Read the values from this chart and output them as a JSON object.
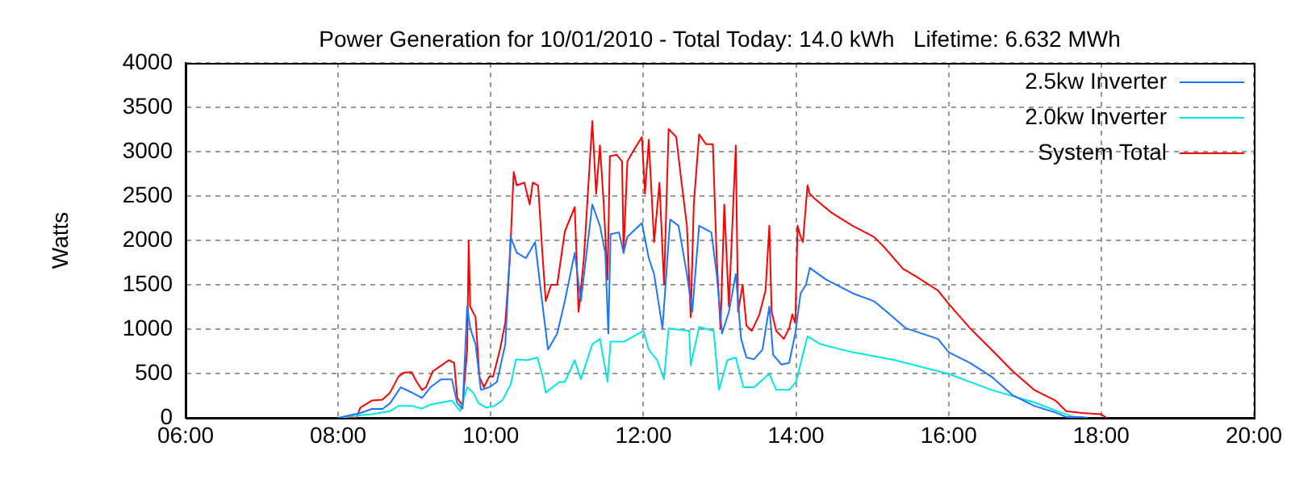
{
  "chart_data": {
    "type": "line",
    "title": "Power Generation for 10/01/2010 - Total Today: 14.0 kWh   Lifetime: 6.632 MWh",
    "ylabel": "Watts",
    "xlim": [
      6,
      20
    ],
    "xticks": [
      {
        "value": 6,
        "label": "06:00"
      },
      {
        "value": 8,
        "label": "08:00"
      },
      {
        "value": 10,
        "label": "10:00"
      },
      {
        "value": 12,
        "label": "12:00"
      },
      {
        "value": 14,
        "label": "14:00"
      },
      {
        "value": 16,
        "label": "16:00"
      },
      {
        "value": 18,
        "label": "18:00"
      },
      {
        "value": 20,
        "label": "20:00"
      }
    ],
    "ylim": [
      0,
      4000
    ],
    "yticks": [
      0,
      500,
      1000,
      1500,
      2000,
      2500,
      3000,
      3500,
      4000
    ],
    "grid": true,
    "legend": "top right",
    "marker": "none",
    "line_style": "solid",
    "series": [
      {
        "name": "2.5kw Inverter",
        "color": "#1a75ff",
        "x": [
          8.0,
          8.29,
          8.44,
          8.58,
          8.68,
          8.82,
          8.93,
          9.03,
          9.1,
          9.21,
          9.35,
          9.49,
          9.56,
          9.63,
          9.69,
          9.73,
          9.8,
          9.87,
          9.98,
          10.08,
          10.19,
          10.26,
          10.34,
          10.46,
          10.58,
          10.68,
          10.75,
          10.87,
          10.97,
          11.1,
          11.18,
          11.33,
          11.43,
          11.5,
          11.54,
          11.57,
          11.68,
          11.74,
          11.79,
          11.98,
          12.07,
          12.14,
          12.25,
          12.35,
          12.46,
          12.57,
          12.64,
          12.73,
          12.89,
          12.96,
          13.03,
          13.12,
          13.21,
          13.28,
          13.35,
          13.45,
          13.56,
          13.65,
          13.7,
          13.81,
          13.91,
          13.99,
          14.06,
          14.13,
          14.18,
          14.39,
          14.74,
          15.02,
          15.19,
          15.44,
          15.86,
          16.0,
          16.28,
          16.56,
          16.84,
          17.12,
          17.4,
          17.54,
          17.75,
          17.82
        ],
        "values": [
          0,
          55,
          100,
          100,
          165,
          345,
          300,
          255,
          225,
          345,
          435,
          435,
          165,
          105,
          1255,
          1010,
          830,
          315,
          345,
          405,
          830,
          2040,
          1860,
          1800,
          1980,
          1255,
          770,
          950,
          1315,
          1860,
          1315,
          2405,
          2165,
          1860,
          950,
          2070,
          2090,
          1860,
          2040,
          2195,
          1800,
          1620,
          1010,
          2235,
          2165,
          1620,
          1195,
          2165,
          2090,
          1620,
          950,
          1195,
          1620,
          890,
          680,
          660,
          770,
          1255,
          710,
          600,
          620,
          950,
          1405,
          1500,
          1690,
          1560,
          1405,
          1315,
          1195,
          1010,
          890,
          740,
          620,
          465,
          255,
          135,
          60,
          10,
          10,
          0
        ]
      },
      {
        "name": "2.0kw Inverter",
        "color": "#00e6e6",
        "x": [
          8.0,
          8.29,
          8.44,
          8.68,
          8.79,
          8.96,
          9.1,
          9.21,
          9.49,
          9.6,
          9.69,
          9.77,
          9.84,
          9.94,
          10.05,
          10.15,
          10.26,
          10.33,
          10.47,
          10.61,
          10.68,
          10.72,
          10.9,
          10.97,
          11.1,
          11.18,
          11.33,
          11.43,
          11.53,
          11.57,
          11.75,
          12.0,
          12.07,
          12.18,
          12.27,
          12.33,
          12.6,
          12.62,
          12.73,
          12.92,
          12.99,
          13.1,
          13.21,
          13.31,
          13.45,
          13.65,
          13.74,
          13.91,
          14.0,
          14.15,
          14.32,
          14.74,
          15.3,
          16.0,
          16.56,
          17.12,
          17.47,
          17.65,
          17.75
        ],
        "values": [
          0,
          30,
          40,
          75,
          135,
          135,
          105,
          150,
          195,
          75,
          345,
          285,
          165,
          115,
          135,
          195,
          375,
          660,
          650,
          680,
          465,
          285,
          405,
          405,
          650,
          435,
          830,
          890,
          405,
          860,
          860,
          980,
          770,
          650,
          435,
          1010,
          980,
          590,
          1025,
          980,
          315,
          650,
          680,
          345,
          345,
          495,
          315,
          315,
          405,
          920,
          830,
          740,
          650,
          495,
          315,
          175,
          60,
          10,
          0
        ]
      },
      {
        "name": "System Total",
        "color": "#ff0000",
        "x": [
          8.0,
          8.24,
          8.29,
          8.44,
          8.58,
          8.68,
          8.79,
          8.86,
          8.96,
          9.03,
          9.1,
          9.15,
          9.24,
          9.35,
          9.45,
          9.52,
          9.56,
          9.63,
          9.69,
          9.71,
          9.73,
          9.8,
          9.85,
          9.91,
          9.98,
          10.03,
          10.12,
          10.19,
          10.25,
          10.3,
          10.34,
          10.44,
          10.51,
          10.55,
          10.62,
          10.68,
          10.72,
          10.79,
          10.87,
          10.97,
          11.1,
          11.15,
          11.22,
          11.33,
          11.38,
          11.43,
          11.48,
          11.53,
          11.56,
          11.65,
          11.72,
          11.74,
          11.79,
          11.89,
          11.98,
          12.02,
          12.07,
          12.14,
          12.21,
          12.27,
          12.33,
          12.43,
          12.5,
          12.57,
          12.62,
          12.66,
          12.73,
          12.82,
          12.91,
          12.96,
          13.01,
          13.06,
          13.12,
          13.21,
          13.24,
          13.3,
          13.35,
          13.42,
          13.52,
          13.6,
          13.65,
          13.68,
          13.74,
          13.84,
          13.91,
          13.95,
          13.99,
          14.02,
          14.06,
          14.09,
          14.15,
          14.18,
          14.25,
          14.46,
          14.74,
          15.02,
          15.16,
          15.4,
          15.58,
          15.86,
          16.0,
          16.28,
          16.56,
          16.84,
          17.12,
          17.4,
          17.54,
          17.75,
          18.0,
          18.07
        ],
        "values": [
          0,
          0,
          115,
          195,
          205,
          285,
          465,
          510,
          515,
          405,
          315,
          345,
          525,
          590,
          650,
          620,
          225,
          135,
          770,
          1995,
          1255,
          1135,
          465,
          345,
          465,
          465,
          770,
          1075,
          1800,
          2770,
          2620,
          2650,
          2405,
          2650,
          2620,
          1800,
          1315,
          1500,
          1500,
          2100,
          2375,
          1195,
          1800,
          3345,
          2525,
          3070,
          2405,
          1560,
          2950,
          2965,
          2890,
          1860,
          2890,
          3040,
          3165,
          2525,
          3135,
          1980,
          2650,
          1500,
          3255,
          3165,
          2650,
          2165,
          1135,
          2405,
          3195,
          3085,
          3085,
          1800,
          1010,
          2405,
          1255,
          3070,
          1195,
          1500,
          1040,
          980,
          1165,
          1435,
          2165,
          1195,
          980,
          890,
          1010,
          1165,
          1070,
          2165,
          2040,
          1980,
          2620,
          2525,
          2465,
          2315,
          2165,
          2040,
          1920,
          1680,
          1590,
          1435,
          1285,
          1010,
          770,
          525,
          315,
          195,
          75,
          55,
          40,
          0
        ]
      }
    ]
  }
}
